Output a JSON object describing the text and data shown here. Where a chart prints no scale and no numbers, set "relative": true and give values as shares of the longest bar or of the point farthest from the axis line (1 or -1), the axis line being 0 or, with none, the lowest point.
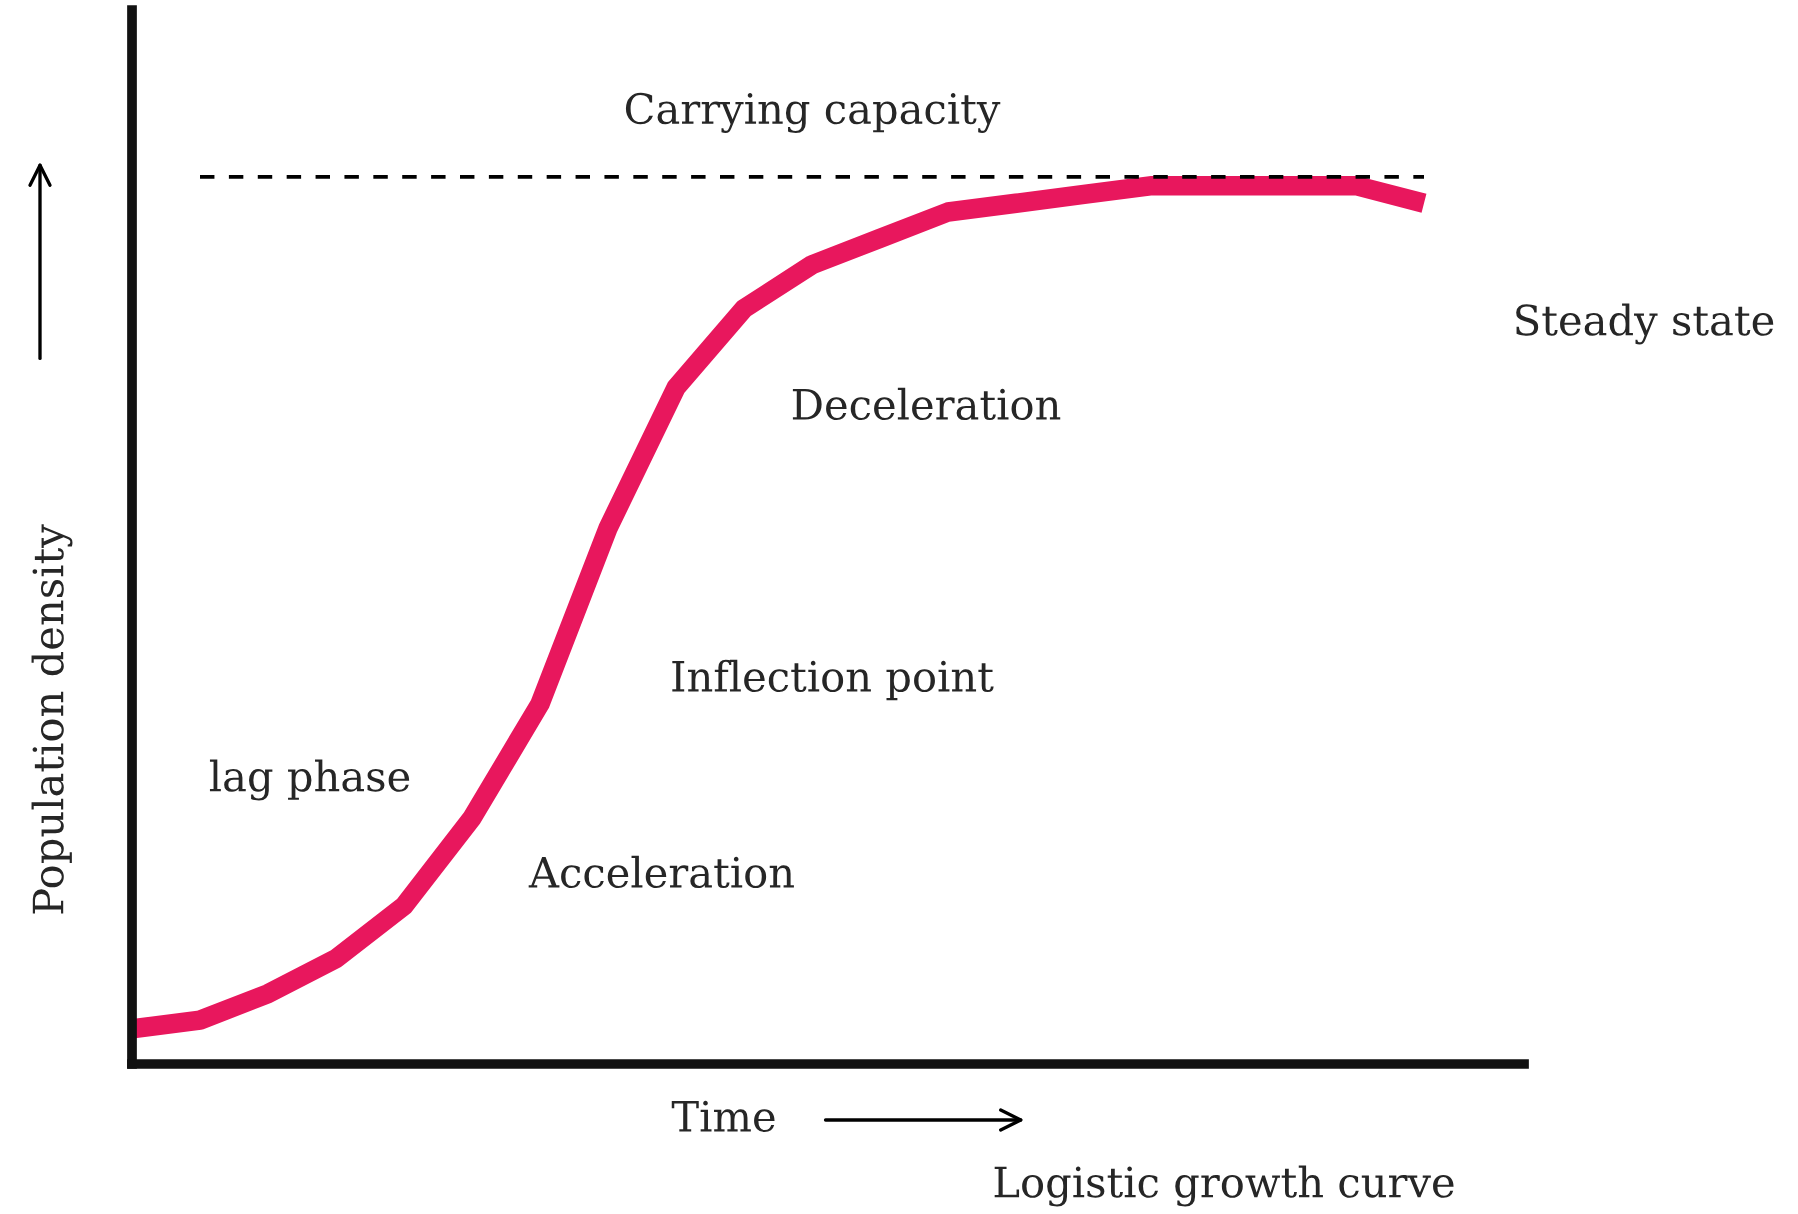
{
  "chart_data": {
    "type": "line",
    "relative": true,
    "xlabel": "Time",
    "ylabel": "Population density",
    "categories": [
      null,
      null,
      null,
      null,
      null,
      null,
      null,
      null,
      null,
      null,
      null,
      null,
      null,
      null,
      null,
      null,
      null,
      null,
      null,
      null
    ],
    "series": [
      {
        "color": "#e8175d",
        "values": [
          0.04,
          0.05,
          0.08,
          0.12,
          0.18,
          0.28,
          0.41,
          0.61,
          0.77,
          0.86,
          0.91,
          0.94,
          0.97,
          0.98,
          0.99,
          1,
          1,
          1,
          1,
          0.98
        ]
      }
    ],
    "ref_lines": [
      {
        "axis": "y",
        "value": 1.01,
        "label": "Carrying capacity",
        "color": "#000000",
        "line_style": "dashed"
      }
    ],
    "annotations": [
      "Steady state",
      "Deceleration",
      "Inflection point",
      "lag phase",
      "Acceleration",
      "Logistic growth curve"
    ]
  }
}
